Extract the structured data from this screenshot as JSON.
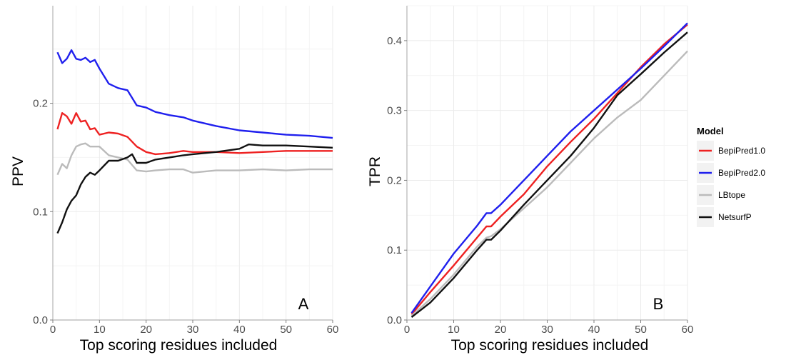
{
  "chart_data": [
    {
      "type": "line",
      "panel_label": "A",
      "xlabel": "Top scoring residues included",
      "ylabel": "PPV",
      "xlim": [
        0,
        60
      ],
      "ylim": [
        0,
        0.29
      ],
      "x_ticks": [
        0,
        10,
        20,
        30,
        40,
        50,
        60
      ],
      "x_tick_labels": [
        "0",
        "10",
        "20",
        "30",
        "40",
        "50",
        "60"
      ],
      "y_ticks": [
        0,
        0.1,
        0.2
      ],
      "y_tick_labels": [
        "0.0",
        "0.1",
        "0.2"
      ],
      "grid": true,
      "series": [
        {
          "name": "BepiPred1.0",
          "color": "#ee2222",
          "points": [
            [
              1,
              0.176
            ],
            [
              2,
              0.191
            ],
            [
              3,
              0.188
            ],
            [
              4,
              0.181
            ],
            [
              5,
              0.191
            ],
            [
              6,
              0.183
            ],
            [
              7,
              0.184
            ],
            [
              8,
              0.176
            ],
            [
              9,
              0.177
            ],
            [
              10,
              0.171
            ],
            [
              12,
              0.173
            ],
            [
              14,
              0.172
            ],
            [
              16,
              0.169
            ],
            [
              18,
              0.16
            ],
            [
              20,
              0.155
            ],
            [
              22,
              0.153
            ],
            [
              25,
              0.154
            ],
            [
              28,
              0.156
            ],
            [
              30,
              0.155
            ],
            [
              35,
              0.155
            ],
            [
              40,
              0.154
            ],
            [
              45,
              0.155
            ],
            [
              50,
              0.156
            ],
            [
              55,
              0.156
            ],
            [
              60,
              0.156
            ]
          ]
        },
        {
          "name": "BepiPred2.0",
          "color": "#2020ee",
          "points": [
            [
              1,
              0.247
            ],
            [
              2,
              0.237
            ],
            [
              3,
              0.241
            ],
            [
              4,
              0.249
            ],
            [
              5,
              0.241
            ],
            [
              6,
              0.24
            ],
            [
              7,
              0.242
            ],
            [
              8,
              0.238
            ],
            [
              9,
              0.24
            ],
            [
              10,
              0.232
            ],
            [
              12,
              0.218
            ],
            [
              14,
              0.214
            ],
            [
              16,
              0.212
            ],
            [
              18,
              0.198
            ],
            [
              20,
              0.196
            ],
            [
              22,
              0.192
            ],
            [
              25,
              0.189
            ],
            [
              28,
              0.187
            ],
            [
              30,
              0.184
            ],
            [
              35,
              0.179
            ],
            [
              40,
              0.175
            ],
            [
              45,
              0.173
            ],
            [
              50,
              0.171
            ],
            [
              55,
              0.17
            ],
            [
              60,
              0.168
            ]
          ]
        },
        {
          "name": "LBtope",
          "color": "#bbbbbb",
          "points": [
            [
              1,
              0.134
            ],
            [
              2,
              0.144
            ],
            [
              3,
              0.14
            ],
            [
              4,
              0.152
            ],
            [
              5,
              0.16
            ],
            [
              6,
              0.162
            ],
            [
              7,
              0.163
            ],
            [
              8,
              0.16
            ],
            [
              9,
              0.16
            ],
            [
              10,
              0.16
            ],
            [
              12,
              0.152
            ],
            [
              14,
              0.15
            ],
            [
              16,
              0.148
            ],
            [
              18,
              0.138
            ],
            [
              20,
              0.137
            ],
            [
              22,
              0.138
            ],
            [
              25,
              0.139
            ],
            [
              28,
              0.139
            ],
            [
              30,
              0.136
            ],
            [
              35,
              0.138
            ],
            [
              40,
              0.138
            ],
            [
              45,
              0.139
            ],
            [
              50,
              0.138
            ],
            [
              55,
              0.139
            ],
            [
              60,
              0.139
            ]
          ]
        },
        {
          "name": "NetsurfP",
          "color": "#111111",
          "points": [
            [
              1,
              0.08
            ],
            [
              2,
              0.09
            ],
            [
              3,
              0.102
            ],
            [
              4,
              0.11
            ],
            [
              5,
              0.115
            ],
            [
              6,
              0.125
            ],
            [
              7,
              0.132
            ],
            [
              8,
              0.136
            ],
            [
              9,
              0.134
            ],
            [
              10,
              0.138
            ],
            [
              12,
              0.147
            ],
            [
              14,
              0.147
            ],
            [
              16,
              0.15
            ],
            [
              17,
              0.153
            ],
            [
              18,
              0.145
            ],
            [
              20,
              0.145
            ],
            [
              22,
              0.148
            ],
            [
              25,
              0.15
            ],
            [
              28,
              0.152
            ],
            [
              30,
              0.153
            ],
            [
              35,
              0.155
            ],
            [
              40,
              0.158
            ],
            [
              42,
              0.162
            ],
            [
              45,
              0.161
            ],
            [
              50,
              0.161
            ],
            [
              55,
              0.16
            ],
            [
              60,
              0.159
            ]
          ]
        }
      ]
    },
    {
      "type": "line",
      "panel_label": "B",
      "xlabel": "Top scoring residues included",
      "ylabel": "TPR",
      "xlim": [
        0,
        60
      ],
      "ylim": [
        0,
        0.45
      ],
      "x_ticks": [
        0,
        10,
        20,
        30,
        40,
        50,
        60
      ],
      "x_tick_labels": [
        "0",
        "10",
        "20",
        "30",
        "40",
        "50",
        "60"
      ],
      "y_ticks": [
        0,
        0.1,
        0.2,
        0.3,
        0.4
      ],
      "y_tick_labels": [
        "0.0",
        "0.1",
        "0.2",
        "0.3",
        "0.4"
      ],
      "grid": true,
      "series": [
        {
          "name": "BepiPred1.0",
          "color": "#ee2222",
          "points": [
            [
              1,
              0.008
            ],
            [
              5,
              0.04
            ],
            [
              10,
              0.078
            ],
            [
              15,
              0.118
            ],
            [
              17,
              0.134
            ],
            [
              18,
              0.134
            ],
            [
              20,
              0.148
            ],
            [
              25,
              0.18
            ],
            [
              30,
              0.22
            ],
            [
              35,
              0.255
            ],
            [
              40,
              0.288
            ],
            [
              45,
              0.325
            ],
            [
              50,
              0.362
            ],
            [
              55,
              0.395
            ],
            [
              60,
              0.423
            ]
          ]
        },
        {
          "name": "BepiPred2.0",
          "color": "#2020ee",
          "points": [
            [
              1,
              0.01
            ],
            [
              5,
              0.048
            ],
            [
              10,
              0.095
            ],
            [
              15,
              0.135
            ],
            [
              17,
              0.153
            ],
            [
              18,
              0.153
            ],
            [
              20,
              0.165
            ],
            [
              25,
              0.2
            ],
            [
              30,
              0.235
            ],
            [
              35,
              0.27
            ],
            [
              40,
              0.3
            ],
            [
              45,
              0.33
            ],
            [
              50,
              0.36
            ],
            [
              55,
              0.392
            ],
            [
              60,
              0.425
            ]
          ]
        },
        {
          "name": "LBtope",
          "color": "#bbbbbb",
          "points": [
            [
              1,
              0.006
            ],
            [
              5,
              0.03
            ],
            [
              10,
              0.065
            ],
            [
              15,
              0.105
            ],
            [
              17,
              0.118
            ],
            [
              18,
              0.12
            ],
            [
              20,
              0.13
            ],
            [
              25,
              0.16
            ],
            [
              30,
              0.19
            ],
            [
              35,
              0.225
            ],
            [
              40,
              0.26
            ],
            [
              45,
              0.29
            ],
            [
              50,
              0.315
            ],
            [
              55,
              0.35
            ],
            [
              60,
              0.385
            ]
          ]
        },
        {
          "name": "NetsurfP",
          "color": "#111111",
          "points": [
            [
              1,
              0.004
            ],
            [
              5,
              0.025
            ],
            [
              10,
              0.06
            ],
            [
              15,
              0.1
            ],
            [
              17,
              0.115
            ],
            [
              18,
              0.115
            ],
            [
              20,
              0.128
            ],
            [
              25,
              0.165
            ],
            [
              30,
              0.2
            ],
            [
              35,
              0.235
            ],
            [
              40,
              0.275
            ],
            [
              45,
              0.322
            ],
            [
              50,
              0.352
            ],
            [
              55,
              0.383
            ],
            [
              60,
              0.412
            ]
          ]
        }
      ]
    }
  ],
  "legend": {
    "title": "Model",
    "placement": "right",
    "entries": [
      {
        "label": "BepiPred1.0",
        "color": "#ee2222"
      },
      {
        "label": "BepiPred2.0",
        "color": "#2020ee"
      },
      {
        "label": "LBtope",
        "color": "#bbbbbb"
      },
      {
        "label": "NetsurfP",
        "color": "#111111"
      }
    ]
  }
}
